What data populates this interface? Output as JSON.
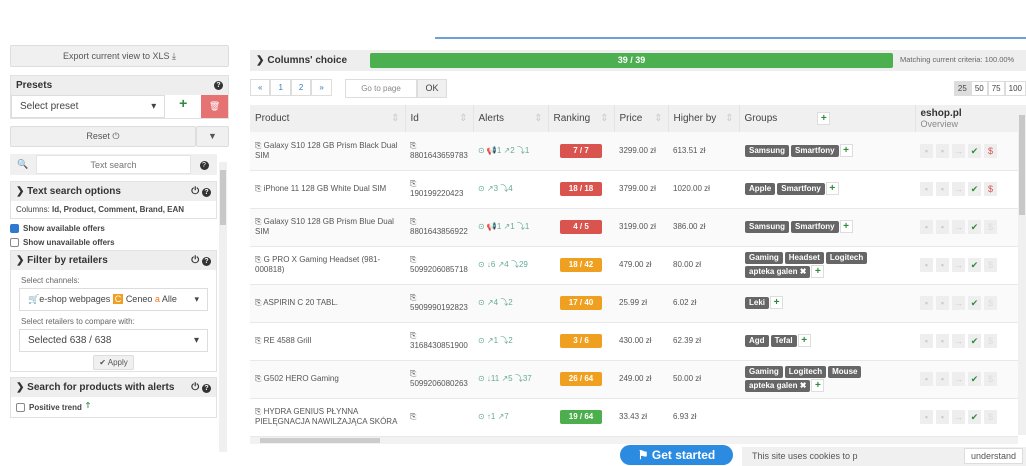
{
  "sidebar": {
    "export_label": "Export current view to XLS ⤓",
    "presets": {
      "title": "Presets",
      "select_placeholder": "Select preset",
      "add": "+",
      "delete": "🗑"
    },
    "reset_label": "Reset ⏻",
    "search_placeholder": "Text search",
    "text_search_options": {
      "title": "Text search options",
      "columns_label": "Columns:",
      "columns": "Id, Product, Comment, Brand, EAN"
    },
    "show_available": "Show available offers",
    "show_unavailable": "Show unavailable offers",
    "filter_retailers": {
      "title": "Filter by retailers",
      "channels_label": "Select channels:",
      "channels_value": "e-shop webpages",
      "channel2": "Ceneo",
      "channel3": "Alle",
      "retailers_label": "Select retailers to compare with:",
      "retailers_value": "Selected 638 / 638",
      "apply": "✔ Apply"
    },
    "alerts_search": {
      "title": "Search for products with alerts",
      "positive_trend": "Positive trend"
    }
  },
  "main": {
    "columns_choice": "Columns' choice",
    "progress_label": "39 / 39",
    "progress_fraction": 1.0,
    "matching": "Matching current criteria: 100.00%",
    "pager": [
      "«",
      "1",
      "2",
      "»"
    ],
    "goto_placeholder": "Go to page",
    "ok": "OK",
    "page_sizes": [
      "25",
      "50",
      "75",
      "100"
    ],
    "page_size_selected": "25",
    "headers": [
      "Product",
      "Id",
      "Alerts",
      "Ranking",
      "Price",
      "Higher by",
      "Groups"
    ],
    "retailer": {
      "name": "eshop.pl",
      "sub": "Overview"
    },
    "rows": [
      {
        "product": "Galaxy S10 128 GB Prism Black Dual SIM",
        "id": "8801643659783",
        "alerts": "⊙ 📢1 ↗2 ⤵1",
        "ranking": "7 / 7",
        "rank_color": "#d9534f",
        "price": "3299.00 zł",
        "higher": "613.51 zł",
        "groups": [
          "Samsung",
          "Smartfony"
        ],
        "dollar": true
      },
      {
        "product": "iPhone 11 128 GB White Dual SIM",
        "id": "190199220423",
        "alerts": "⊙ ↗3 ⤵4",
        "ranking": "18 / 18",
        "rank_color": "#d9534f",
        "price": "3799.00 zł",
        "higher": "1020.00 zł",
        "groups": [
          "Apple",
          "Smartfony"
        ],
        "dollar": true
      },
      {
        "product": "Galaxy S10 128 GB Prism Blue Dual SIM",
        "id": "8801643856922",
        "alerts": "⊙ 📢1 ↗1 ⤵1",
        "ranking": "4 / 5",
        "rank_color": "#d9534f",
        "price": "3199.00 zł",
        "higher": "386.00 zł",
        "groups": [
          "Samsung",
          "Smartfony"
        ],
        "dollar": false
      },
      {
        "product": "G PRO X Gaming Headset (981-000818)",
        "id": "5099206085718",
        "alerts": "⊙ ↓6 ↗4 ⤵29",
        "ranking": "18 / 42",
        "rank_color": "#f0a020",
        "price": "479.00 zł",
        "higher": "80.00 zł",
        "groups": [
          "Gaming",
          "Headset",
          "Logitech",
          "apteka galen ✖"
        ],
        "dollar": false
      },
      {
        "product": "ASPIRIN C 20 TABL.",
        "id": "5909990192823",
        "alerts": "⊙ ↗4 ⤵2",
        "ranking": "17 / 40",
        "rank_color": "#f0a020",
        "price": "25.99 zł",
        "higher": "6.02 zł",
        "groups": [
          "Leki"
        ],
        "dollar": false
      },
      {
        "product": "RE 4588 Grill",
        "id": "3168430851900",
        "alerts": "⊙ ↗1 ⤵2",
        "ranking": "3 / 6",
        "rank_color": "#f0a020",
        "price": "430.00 zł",
        "higher": "62.39 zł",
        "groups": [
          "Agd",
          "Tefal"
        ],
        "dollar": false
      },
      {
        "product": "G502 HERO Gaming",
        "id": "5099206080263",
        "alerts": "⊙ ↓11 ↗5 ⤵37",
        "ranking": "26 / 64",
        "rank_color": "#f0a020",
        "price": "249.00 zł",
        "higher": "50.00 zł",
        "groups": [
          "Gaming",
          "Logitech",
          "Mouse",
          "apteka galen ✖"
        ],
        "dollar": false
      },
      {
        "product": "HYDRA GENIUS PŁYNNA PIELĘGNACJA NAWILŻAJĄCA SKÓRA",
        "id": "",
        "alerts": "⊙ ↑1 ↗7",
        "ranking": "19 / 64",
        "rank_color": "#4cae4c",
        "price": "33.43 zł",
        "higher": "6.93 zł",
        "groups": [],
        "dollar": false
      }
    ]
  },
  "cookie": {
    "text": "This site uses cookies to p",
    "button": "understand"
  },
  "get_started": "Get started"
}
